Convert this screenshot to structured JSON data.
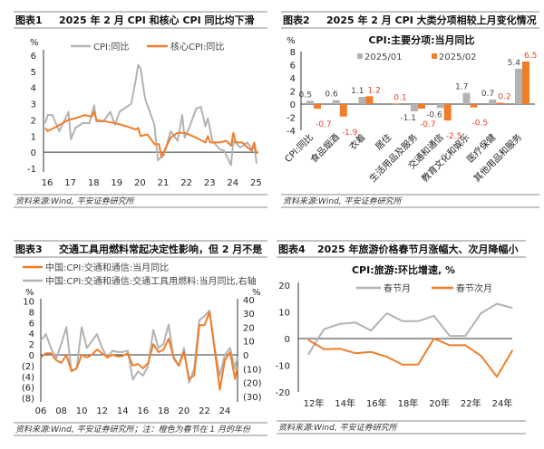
{
  "colors": {
    "gray": "#b3b3b3",
    "orange": "#f07d2a",
    "red": "#e8412c",
    "axis": "#333333",
    "rule": "#888888"
  },
  "panels": [
    {
      "label": "图表1",
      "title": "2025 年 2 月 CPI 和核心 CPI 同比均下滑",
      "source": "资料来源:Wind, 平安证券研究所"
    },
    {
      "label": "图表2",
      "title": "2025 年 2 月 CPI 大类分项相较上月变化情况",
      "source": "资料来源:Wind, 平安证券研究所"
    },
    {
      "label": "图表3",
      "title": "交通工具用燃料常起决定性影响，但 2 月不是",
      "source": "资料来源:Wind, 平安证券研究所；注：橙色为春节在 1 月的年份"
    },
    {
      "label": "图表4",
      "title": "2025 年旅游价格春节月涨幅大、次月降幅小",
      "source": "资料来源:Wind, 平安证券研究所"
    }
  ],
  "chart_data": [
    {
      "type": "line",
      "title": "",
      "ylabel": "%",
      "ylim": [
        -1,
        6
      ],
      "yticks": [
        "6",
        "5",
        "4",
        "3",
        "2",
        "1",
        "0",
        "-1"
      ],
      "ytick_values": [
        6,
        5,
        4,
        3,
        2,
        1,
        0,
        -1
      ],
      "xticks": [
        "16",
        "17",
        "18",
        "19",
        "20",
        "21",
        "22",
        "23",
        "24",
        "25"
      ],
      "legend": "top",
      "series": [
        {
          "name": "CPI:同比",
          "color": "gray",
          "x": [
            2016.0,
            2016.1,
            2016.3,
            2016.6,
            2016.9,
            2017.0,
            2017.1,
            2017.3,
            2017.6,
            2017.9,
            2018.1,
            2018.2,
            2018.5,
            2018.8,
            2019.0,
            2019.2,
            2019.4,
            2019.7,
            2019.9,
            2020.0,
            2020.1,
            2020.3,
            2020.5,
            2020.7,
            2020.85,
            2021.0,
            2021.1,
            2021.4,
            2021.7,
            2021.8,
            2021.9,
            2022.0,
            2022.2,
            2022.5,
            2022.7,
            2022.9,
            2023.0,
            2023.2,
            2023.5,
            2023.7,
            2023.9,
            2024.0,
            2024.1,
            2024.4,
            2024.7,
            2024.9,
            2025.0,
            2025.1
          ],
          "y": [
            1.8,
            2.3,
            2.3,
            1.3,
            2.2,
            2.5,
            0.8,
            1.5,
            1.8,
            1.8,
            2.9,
            1.9,
            1.9,
            2.5,
            1.7,
            2.5,
            2.7,
            3.0,
            4.5,
            5.4,
            5.2,
            3.3,
            2.5,
            1.7,
            -0.5,
            -0.3,
            -0.2,
            1.3,
            0.7,
            1.5,
            2.3,
            0.9,
            1.5,
            2.7,
            2.8,
            1.6,
            2.1,
            0.7,
            0.2,
            0.1,
            -0.5,
            -0.8,
            0.7,
            0.3,
            0.6,
            0.2,
            0.5,
            -0.7
          ]
        },
        {
          "name": "核心CPI:同比",
          "color": "orange",
          "x": [
            2016.0,
            2016.1,
            2016.5,
            2017.0,
            2017.3,
            2017.7,
            2018.0,
            2018.1,
            2018.2,
            2018.6,
            2019.0,
            2019.5,
            2019.9,
            2020.0,
            2020.1,
            2020.4,
            2020.7,
            2020.9,
            2021.0,
            2021.1,
            2021.4,
            2021.7,
            2022.0,
            2022.5,
            2022.9,
            2023.0,
            2023.1,
            2023.5,
            2023.8,
            2024.0,
            2024.1,
            2024.2,
            2024.5,
            2024.7,
            2024.9,
            2025.0,
            2025.1
          ],
          "y": [
            1.5,
            1.3,
            1.6,
            2.0,
            2.1,
            2.3,
            2.2,
            2.5,
            2.0,
            1.9,
            1.8,
            1.6,
            1.4,
            1.5,
            1.0,
            1.1,
            0.5,
            0.5,
            -0.3,
            0.0,
            0.9,
            1.2,
            1.2,
            0.9,
            0.6,
            1.0,
            0.6,
            0.6,
            0.7,
            0.4,
            1.2,
            0.6,
            0.6,
            0.3,
            0.1,
            0.6,
            -0.1
          ]
        }
      ]
    },
    {
      "type": "bar",
      "title": "CPI:主要分项:当月同比",
      "ylabel": "%",
      "ylim": [
        -4,
        8
      ],
      "yticks": [
        "8",
        "6",
        "4",
        "2",
        "0",
        "-2",
        "-4"
      ],
      "ytick_values": [
        8,
        6,
        4,
        2,
        0,
        -2,
        -4
      ],
      "categories": [
        "CPI:同比",
        "食品烟酒",
        "衣着",
        "居住",
        "生活用品及服务",
        "交通和通信",
        "教育文化和娱乐",
        "医疗保健",
        "其他用品和服务"
      ],
      "legend": "top",
      "series": [
        {
          "name": "2025/01",
          "color": "gray",
          "values": [
            0.5,
            0.6,
            1.1,
            null,
            -1.1,
            -0.6,
            1.7,
            0.7,
            5.4
          ],
          "labels": [
            "0.5",
            "0.6",
            "1.1",
            "",
            "-1.1",
            "-0.6",
            "1.7",
            "0.7",
            "5.4"
          ]
        },
        {
          "name": "2025/02",
          "color": "orange",
          "values": [
            -0.7,
            -1.9,
            1.2,
            0.1,
            -0.7,
            -2.5,
            -0.5,
            0.2,
            6.5
          ],
          "labels": [
            "-0.7",
            "-1.9",
            "1.2",
            "0.1",
            "-0.7",
            "-2.5",
            "-0.5",
            "0.2",
            "6.5"
          ]
        }
      ]
    },
    {
      "type": "line",
      "title": "",
      "ylabel": "%",
      "ylabel_right": "%",
      "ylim": [
        -8,
        10
      ],
      "ylim_right": [
        -30,
        40
      ],
      "yticks": [
        "10",
        "8",
        "6",
        "4",
        "2",
        "0",
        "(2)",
        "(4)",
        "(6)",
        "(8)"
      ],
      "ytick_values": [
        10,
        8,
        6,
        4,
        2,
        0,
        -2,
        -4,
        -6,
        -8
      ],
      "yticks_right": [
        "40",
        "30",
        "20",
        "10",
        "0",
        "(10)",
        "(20)",
        "(30)"
      ],
      "ytick_values_right": [
        40,
        30,
        20,
        10,
        0,
        -10,
        -20,
        -30
      ],
      "xticks": [
        "06",
        "08",
        "10",
        "12",
        "14",
        "16",
        "18",
        "20",
        "22",
        "24"
      ],
      "legend": "top-left",
      "series": [
        {
          "name": "中国:CPI:交通和通信:当月同比",
          "color": "orange",
          "axis": "left",
          "x": [
            2006,
            2006.5,
            2007,
            2007.5,
            2008,
            2008.5,
            2009,
            2009.5,
            2010,
            2010.5,
            2011,
            2011.5,
            2012,
            2012.5,
            2013,
            2013.5,
            2014,
            2014.5,
            2015,
            2015.5,
            2016,
            2016.5,
            2017,
            2017.5,
            2018,
            2018.5,
            2019,
            2019.5,
            2020,
            2020.5,
            2021,
            2021.5,
            2022,
            2022.5,
            2023,
            2023.5,
            2024,
            2024.5,
            2025,
            2025.2
          ],
          "y": [
            -0.5,
            0.3,
            0.3,
            -1,
            -1.5,
            0,
            -3,
            -2.5,
            0,
            -0.5,
            0,
            1,
            0.3,
            -0.5,
            0,
            -0.3,
            -0.2,
            0.3,
            -2,
            -1.7,
            -2.5,
            -1.5,
            2,
            0.5,
            1,
            3,
            -0.5,
            -2,
            0.5,
            -4.5,
            -3.8,
            5.5,
            5.5,
            8,
            1,
            -6.5,
            -1,
            0.5,
            -4.5,
            -2.5
          ]
        },
        {
          "name": "中国:CPI:交通和通信:交通工具用燃料:当月同比,右轴",
          "color": "gray",
          "axis": "right",
          "x": [
            2006,
            2006.5,
            2007,
            2007.5,
            2008,
            2008.5,
            2009,
            2009.5,
            2010,
            2010.5,
            2011,
            2011.5,
            2012,
            2012.5,
            2013,
            2013.5,
            2014,
            2014.5,
            2015,
            2015.5,
            2016,
            2016.5,
            2017,
            2017.5,
            2018,
            2018.5,
            2019,
            2019.5,
            2020,
            2020.5,
            2021,
            2021.5,
            2022,
            2022.5,
            2023,
            2023.5,
            2024,
            2024.5,
            2025,
            2025.2
          ],
          "y": [
            10,
            15,
            5,
            -3,
            8,
            20,
            -12,
            -10,
            20,
            5,
            10,
            15,
            5,
            -2,
            3,
            2,
            2,
            3,
            -18,
            -12,
            -15,
            -8,
            18,
            5,
            8,
            22,
            -3,
            -8,
            5,
            -20,
            -10,
            25,
            28,
            32,
            5,
            -15,
            0,
            5,
            -10,
            -2
          ]
        }
      ]
    },
    {
      "type": "line",
      "title": "CPI:旅游:环比增速, %",
      "ylim": [
        -20,
        20
      ],
      "yticks": [
        "20",
        "10",
        "0",
        "-10",
        "-20"
      ],
      "ytick_values": [
        20,
        10,
        0,
        -10,
        -20
      ],
      "xticks": [
        "12年",
        "14年",
        "16年",
        "18年",
        "20年",
        "22年",
        "24年"
      ],
      "legend": "top",
      "series": [
        {
          "name": "春节月",
          "color": "gray",
          "x": [
            2012,
            2013,
            2014,
            2015,
            2016,
            2017,
            2018,
            2019,
            2020,
            2021,
            2022,
            2023,
            2024,
            2025
          ],
          "y": [
            -6,
            3.5,
            5.5,
            6,
            3,
            9.5,
            6.5,
            6.5,
            8.5,
            1,
            1,
            9.5,
            13,
            11.5
          ]
        },
        {
          "name": "春节次月",
          "color": "orange",
          "x": [
            2012,
            2013,
            2014,
            2015,
            2016,
            2017,
            2018,
            2019,
            2020,
            2021,
            2022,
            2023,
            2024,
            2025
          ],
          "y": [
            -0.5,
            -4,
            -3.8,
            -5.5,
            -5,
            -6.8,
            -9.8,
            -9.7,
            0,
            -2.5,
            -2.5,
            -6.5,
            -14.3,
            -4.3
          ]
        }
      ]
    }
  ]
}
